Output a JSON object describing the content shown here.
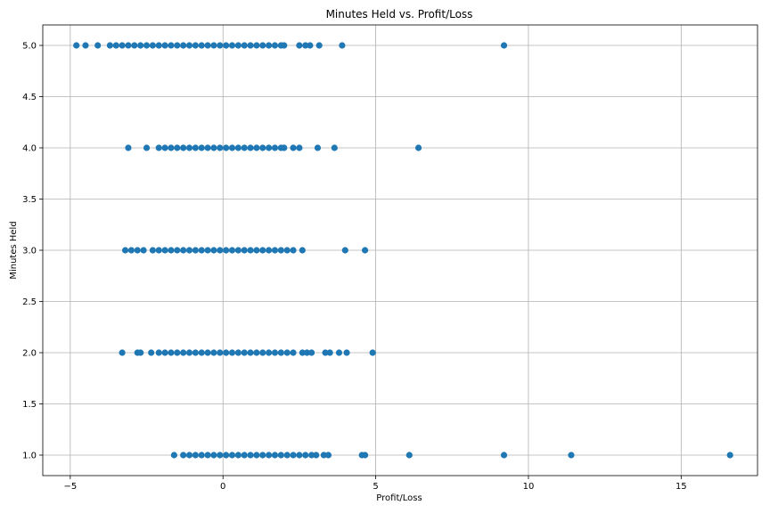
{
  "chart_data": {
    "type": "scatter",
    "title": "Minutes Held vs. Profit/Loss",
    "xlabel": "Profit/Loss",
    "ylabel": "Minutes Held",
    "xlim": [
      -5.9,
      17.5
    ],
    "ylim": [
      0.8,
      5.2
    ],
    "xticks": [
      -5,
      0,
      5,
      10,
      15
    ],
    "yticks": [
      1.0,
      1.5,
      2.0,
      2.5,
      3.0,
      3.5,
      4.0,
      4.5,
      5.0
    ],
    "grid": true,
    "marker_color": "#1f77b4",
    "series": [
      {
        "points": [
          {
            "x": -4.8,
            "y": 5
          },
          {
            "x": -4.5,
            "y": 5
          },
          {
            "x": -4.1,
            "y": 5
          },
          {
            "x": -3.7,
            "y": 5
          },
          {
            "x": -3.5,
            "y": 5
          },
          {
            "x": -3.3,
            "y": 5
          },
          {
            "x": -3.1,
            "y": 5
          },
          {
            "x": -2.9,
            "y": 5
          },
          {
            "x": -2.7,
            "y": 5
          },
          {
            "x": -2.5,
            "y": 5
          },
          {
            "x": -2.3,
            "y": 5
          },
          {
            "x": -2.1,
            "y": 5
          },
          {
            "x": -1.9,
            "y": 5
          },
          {
            "x": -1.7,
            "y": 5
          },
          {
            "x": -1.5,
            "y": 5
          },
          {
            "x": -1.3,
            "y": 5
          },
          {
            "x": -1.1,
            "y": 5
          },
          {
            "x": -0.9,
            "y": 5
          },
          {
            "x": -0.7,
            "y": 5
          },
          {
            "x": -0.5,
            "y": 5
          },
          {
            "x": -0.3,
            "y": 5
          },
          {
            "x": -0.1,
            "y": 5
          },
          {
            "x": 0.1,
            "y": 5
          },
          {
            "x": 0.3,
            "y": 5
          },
          {
            "x": 0.5,
            "y": 5
          },
          {
            "x": 0.7,
            "y": 5
          },
          {
            "x": 0.9,
            "y": 5
          },
          {
            "x": 1.1,
            "y": 5
          },
          {
            "x": 1.3,
            "y": 5
          },
          {
            "x": 1.5,
            "y": 5
          },
          {
            "x": 1.7,
            "y": 5
          },
          {
            "x": 1.9,
            "y": 5
          },
          {
            "x": 2.0,
            "y": 5
          },
          {
            "x": 2.5,
            "y": 5
          },
          {
            "x": 2.7,
            "y": 5
          },
          {
            "x": 2.85,
            "y": 5
          },
          {
            "x": 3.15,
            "y": 5
          },
          {
            "x": 3.9,
            "y": 5
          },
          {
            "x": 9.2,
            "y": 5
          },
          {
            "x": -3.1,
            "y": 4
          },
          {
            "x": -2.5,
            "y": 4
          },
          {
            "x": -2.1,
            "y": 4
          },
          {
            "x": -1.9,
            "y": 4
          },
          {
            "x": -1.7,
            "y": 4
          },
          {
            "x": -1.5,
            "y": 4
          },
          {
            "x": -1.3,
            "y": 4
          },
          {
            "x": -1.1,
            "y": 4
          },
          {
            "x": -0.9,
            "y": 4
          },
          {
            "x": -0.7,
            "y": 4
          },
          {
            "x": -0.5,
            "y": 4
          },
          {
            "x": -0.3,
            "y": 4
          },
          {
            "x": -0.1,
            "y": 4
          },
          {
            "x": 0.1,
            "y": 4
          },
          {
            "x": 0.3,
            "y": 4
          },
          {
            "x": 0.5,
            "y": 4
          },
          {
            "x": 0.7,
            "y": 4
          },
          {
            "x": 0.9,
            "y": 4
          },
          {
            "x": 1.1,
            "y": 4
          },
          {
            "x": 1.3,
            "y": 4
          },
          {
            "x": 1.5,
            "y": 4
          },
          {
            "x": 1.7,
            "y": 4
          },
          {
            "x": 1.9,
            "y": 4
          },
          {
            "x": 2.0,
            "y": 4
          },
          {
            "x": 2.3,
            "y": 4
          },
          {
            "x": 2.5,
            "y": 4
          },
          {
            "x": 3.1,
            "y": 4
          },
          {
            "x": 3.65,
            "y": 4
          },
          {
            "x": 6.4,
            "y": 4
          },
          {
            "x": -3.2,
            "y": 3
          },
          {
            "x": -3.0,
            "y": 3
          },
          {
            "x": -2.8,
            "y": 3
          },
          {
            "x": -2.6,
            "y": 3
          },
          {
            "x": -2.3,
            "y": 3
          },
          {
            "x": -2.1,
            "y": 3
          },
          {
            "x": -1.9,
            "y": 3
          },
          {
            "x": -1.7,
            "y": 3
          },
          {
            "x": -1.5,
            "y": 3
          },
          {
            "x": -1.3,
            "y": 3
          },
          {
            "x": -1.1,
            "y": 3
          },
          {
            "x": -0.9,
            "y": 3
          },
          {
            "x": -0.7,
            "y": 3
          },
          {
            "x": -0.5,
            "y": 3
          },
          {
            "x": -0.3,
            "y": 3
          },
          {
            "x": -0.1,
            "y": 3
          },
          {
            "x": 0.1,
            "y": 3
          },
          {
            "x": 0.3,
            "y": 3
          },
          {
            "x": 0.5,
            "y": 3
          },
          {
            "x": 0.7,
            "y": 3
          },
          {
            "x": 0.9,
            "y": 3
          },
          {
            "x": 1.1,
            "y": 3
          },
          {
            "x": 1.3,
            "y": 3
          },
          {
            "x": 1.5,
            "y": 3
          },
          {
            "x": 1.7,
            "y": 3
          },
          {
            "x": 1.9,
            "y": 3
          },
          {
            "x": 2.1,
            "y": 3
          },
          {
            "x": 2.3,
            "y": 3
          },
          {
            "x": 2.6,
            "y": 3
          },
          {
            "x": 4.0,
            "y": 3
          },
          {
            "x": 4.65,
            "y": 3
          },
          {
            "x": -3.3,
            "y": 2
          },
          {
            "x": -2.8,
            "y": 2
          },
          {
            "x": -2.7,
            "y": 2
          },
          {
            "x": -2.35,
            "y": 2
          },
          {
            "x": -2.1,
            "y": 2
          },
          {
            "x": -1.9,
            "y": 2
          },
          {
            "x": -1.7,
            "y": 2
          },
          {
            "x": -1.5,
            "y": 2
          },
          {
            "x": -1.3,
            "y": 2
          },
          {
            "x": -1.1,
            "y": 2
          },
          {
            "x": -0.9,
            "y": 2
          },
          {
            "x": -0.7,
            "y": 2
          },
          {
            "x": -0.5,
            "y": 2
          },
          {
            "x": -0.3,
            "y": 2
          },
          {
            "x": -0.1,
            "y": 2
          },
          {
            "x": 0.1,
            "y": 2
          },
          {
            "x": 0.3,
            "y": 2
          },
          {
            "x": 0.5,
            "y": 2
          },
          {
            "x": 0.7,
            "y": 2
          },
          {
            "x": 0.9,
            "y": 2
          },
          {
            "x": 1.1,
            "y": 2
          },
          {
            "x": 1.3,
            "y": 2
          },
          {
            "x": 1.5,
            "y": 2
          },
          {
            "x": 1.7,
            "y": 2
          },
          {
            "x": 1.9,
            "y": 2
          },
          {
            "x": 2.1,
            "y": 2
          },
          {
            "x": 2.3,
            "y": 2
          },
          {
            "x": 2.6,
            "y": 2
          },
          {
            "x": 2.75,
            "y": 2
          },
          {
            "x": 2.9,
            "y": 2
          },
          {
            "x": 3.35,
            "y": 2
          },
          {
            "x": 3.5,
            "y": 2
          },
          {
            "x": 3.8,
            "y": 2
          },
          {
            "x": 4.05,
            "y": 2
          },
          {
            "x": 4.9,
            "y": 2
          },
          {
            "x": -1.6,
            "y": 1
          },
          {
            "x": -1.3,
            "y": 1
          },
          {
            "x": -1.1,
            "y": 1
          },
          {
            "x": -0.9,
            "y": 1
          },
          {
            "x": -0.7,
            "y": 1
          },
          {
            "x": -0.5,
            "y": 1
          },
          {
            "x": -0.3,
            "y": 1
          },
          {
            "x": -0.1,
            "y": 1
          },
          {
            "x": 0.1,
            "y": 1
          },
          {
            "x": 0.3,
            "y": 1
          },
          {
            "x": 0.5,
            "y": 1
          },
          {
            "x": 0.7,
            "y": 1
          },
          {
            "x": 0.9,
            "y": 1
          },
          {
            "x": 1.1,
            "y": 1
          },
          {
            "x": 1.3,
            "y": 1
          },
          {
            "x": 1.5,
            "y": 1
          },
          {
            "x": 1.7,
            "y": 1
          },
          {
            "x": 1.9,
            "y": 1
          },
          {
            "x": 2.1,
            "y": 1
          },
          {
            "x": 2.3,
            "y": 1
          },
          {
            "x": 2.5,
            "y": 1
          },
          {
            "x": 2.7,
            "y": 1
          },
          {
            "x": 2.9,
            "y": 1
          },
          {
            "x": 3.05,
            "y": 1
          },
          {
            "x": 3.3,
            "y": 1
          },
          {
            "x": 3.45,
            "y": 1
          },
          {
            "x": 4.55,
            "y": 1
          },
          {
            "x": 4.65,
            "y": 1
          },
          {
            "x": 6.1,
            "y": 1
          },
          {
            "x": 9.2,
            "y": 1
          },
          {
            "x": 11.4,
            "y": 1
          },
          {
            "x": 16.6,
            "y": 1
          }
        ]
      }
    ]
  }
}
